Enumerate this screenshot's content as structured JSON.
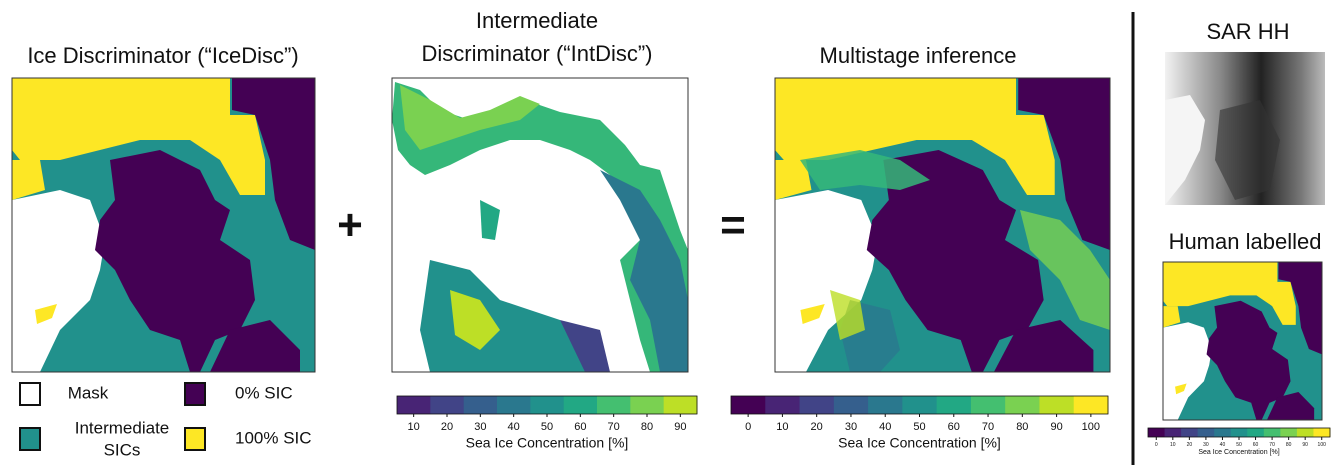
{
  "ice_disc": {
    "title": "Ice Discriminator (“IceDisc”)",
    "legend": [
      {
        "label": [
          "Mask"
        ]
      },
      {
        "label": [
          "0% SIC"
        ]
      },
      {
        "label": [
          "Intermediate",
          "SICs"
        ]
      },
      {
        "label": [
          "100% SIC"
        ]
      }
    ]
  },
  "operators": {
    "plus": "+",
    "equals": "="
  },
  "int_disc": {
    "title": [
      "Intermediate",
      "Discriminator (“IntDisc”)"
    ],
    "colorbar": {
      "ticks": [
        10,
        20,
        30,
        40,
        50,
        60,
        70,
        80,
        90
      ],
      "label": "Sea Ice Concentration [%]"
    }
  },
  "multistage": {
    "title": "Multistage inference",
    "colorbar": {
      "ticks": [
        0,
        10,
        20,
        30,
        40,
        50,
        60,
        70,
        80,
        90,
        100
      ],
      "label": "Sea Ice Concentration [%]"
    }
  },
  "sar": {
    "title": "SAR HH"
  },
  "human": {
    "title": "Human labelled",
    "colorbar": {
      "ticks": [
        0,
        10,
        20,
        30,
        40,
        50,
        60,
        70,
        80,
        90,
        100
      ],
      "label": "Sea Ice Concentration [%]"
    }
  }
}
